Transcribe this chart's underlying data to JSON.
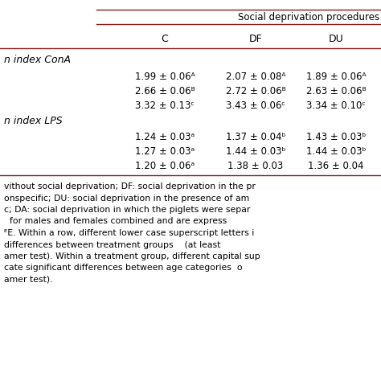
{
  "figsize": [
    4.74,
    4.74
  ],
  "dpi": 100,
  "header_top": "Social deprivation procedures",
  "col_headers": [
    "C",
    "DF",
    "DU"
  ],
  "section1_label": "n index ConA",
  "section1_rows": [
    [
      "1.99 ± 0.06ᴬ",
      "2.07 ± 0.08ᴬ",
      "1.89 ± 0.06ᴬ"
    ],
    [
      "2.66 ± 0.06ᴮ",
      "2.72 ± 0.06ᴮ",
      "2.63 ± 0.06ᴮ"
    ],
    [
      "3.32 ± 0.13ᶜ",
      "3.43 ± 0.06ᶜ",
      "3.34 ± 0.10ᶜ"
    ]
  ],
  "section2_label": "n index LPS",
  "section2_rows": [
    [
      "1.24 ± 0.03ᵃ",
      "1.37 ± 0.04ᵇ",
      "1.43 ± 0.03ᵇ"
    ],
    [
      "1.27 ± 0.03ᵃ",
      "1.44 ± 0.03ᵇ",
      "1.44 ± 0.03ᵇ"
    ],
    [
      "1.20 ± 0.06ᵃ",
      "1.38 ± 0.03",
      "1.36 ± 0.04"
    ]
  ],
  "footer_lines": [
    "vithout social deprivation; DF: social deprivation in the pr",
    "onspecific; DU: social deprivation in the presence of am",
    "c; DA: social deprivation in which the piglets were separ",
    "  for males and females combined and are express",
    "ᴱE. Within a row, different lower case superscript letters i",
    "differences between treatment groups    (at least",
    "amer test). Within a treatment group, different capital sup",
    "cate significant differences between age categories  o",
    "amer test)."
  ],
  "line_color": "#8B1A1A",
  "bg_color": "#ffffff",
  "text_color": "#000000",
  "font_size_header": 8.5,
  "font_size_col": 9.0,
  "font_size_data": 8.5,
  "font_size_section": 9.0,
  "font_size_footer": 7.8
}
